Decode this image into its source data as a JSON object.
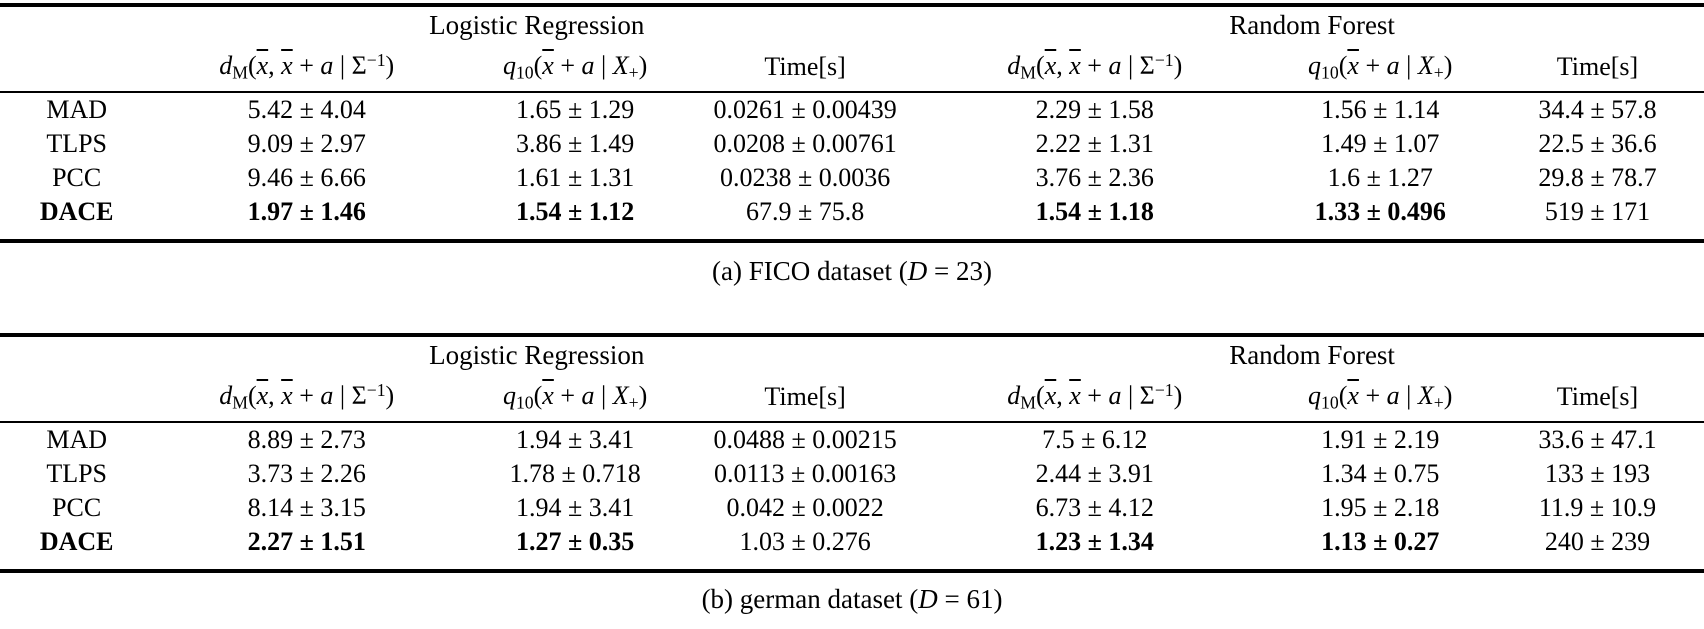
{
  "labels": {
    "logistic_regression": "Logistic Regression",
    "random_forest": "Random Forest",
    "time": "Time[s]"
  },
  "math": {
    "dm": [
      {
        "t": "d",
        "it": 1
      },
      {
        "t": "M",
        "sub": 1
      },
      {
        "t": "("
      },
      {
        "t": "x",
        "it": 1,
        "ov": 1
      },
      {
        "t": ", "
      },
      {
        "t": "x",
        "it": 1,
        "ov": 1
      },
      {
        "t": " + "
      },
      {
        "t": "a",
        "it": 1
      },
      {
        "t": " | "
      },
      {
        "t": "Σ"
      },
      {
        "t": "−1",
        "sup": 1
      },
      {
        "t": ")"
      }
    ],
    "q10": [
      {
        "t": "q",
        "it": 1
      },
      {
        "t": "10",
        "sub": 1
      },
      {
        "t": "("
      },
      {
        "t": "x",
        "it": 1,
        "ov": 1
      },
      {
        "t": " + "
      },
      {
        "t": "a",
        "it": 1
      },
      {
        "t": " | "
      },
      {
        "t": "X",
        "it": 1
      },
      {
        "t": "+",
        "sub": 1
      },
      {
        "t": ")"
      }
    ]
  },
  "tables": [
    {
      "caption": {
        "pre": "(a) FICO dataset (",
        "var": "D",
        "post": " = 23)"
      },
      "rows": [
        {
          "label": "MAD",
          "bold": false,
          "bold_cells": [],
          "cells": [
            "5.42 ± 4.04",
            "1.65 ± 1.29",
            "0.0261 ± 0.00439",
            "2.29 ± 1.58",
            "1.56 ± 1.14",
            "34.4 ± 57.8"
          ]
        },
        {
          "label": "TLPS",
          "bold": false,
          "bold_cells": [],
          "cells": [
            "9.09 ± 2.97",
            "3.86 ± 1.49",
            "0.0208 ± 0.00761",
            "2.22 ± 1.31",
            "1.49 ± 1.07",
            "22.5 ± 36.6"
          ]
        },
        {
          "label": "PCC",
          "bold": false,
          "bold_cells": [],
          "cells": [
            "9.46 ± 6.66",
            "1.61 ± 1.31",
            "0.0238 ± 0.0036",
            "3.76 ± 2.36",
            "1.6 ± 1.27",
            "29.8 ± 78.7"
          ]
        },
        {
          "label": "DACE",
          "bold": true,
          "bold_cells": [
            0,
            1,
            3,
            4
          ],
          "cells": [
            "1.97 ± 1.46",
            "1.54 ± 1.12",
            "67.9 ± 75.8",
            "1.54 ± 1.18",
            "1.33 ± 0.496",
            "519 ± 171"
          ]
        }
      ]
    },
    {
      "caption": {
        "pre": "(b) german dataset (",
        "var": "D",
        "post": " = 61)"
      },
      "rows": [
        {
          "label": "MAD",
          "bold": false,
          "bold_cells": [],
          "cells": [
            "8.89 ± 2.73",
            "1.94 ± 3.41",
            "0.0488 ± 0.00215",
            "7.5 ± 6.12",
            "1.91 ± 2.19",
            "33.6 ± 47.1"
          ]
        },
        {
          "label": "TLPS",
          "bold": false,
          "bold_cells": [],
          "cells": [
            "3.73 ± 2.26",
            "1.78 ± 0.718",
            "0.0113 ± 0.00163",
            "2.44 ± 3.91",
            "1.34 ± 0.75",
            "133 ± 193"
          ]
        },
        {
          "label": "PCC",
          "bold": false,
          "bold_cells": [],
          "cells": [
            "8.14 ± 3.15",
            "1.94 ± 3.41",
            "0.042 ± 0.0022",
            "6.73 ± 4.12",
            "1.95 ± 2.18",
            "11.9 ± 10.9"
          ]
        },
        {
          "label": "DACE",
          "bold": true,
          "bold_cells": [
            0,
            1,
            3,
            4
          ],
          "cells": [
            "2.27 ± 1.51",
            "1.27 ± 0.35",
            "1.03 ± 0.276",
            "1.23 ± 1.34",
            "1.13 ± 0.27",
            "240 ± 239"
          ]
        }
      ]
    }
  ]
}
